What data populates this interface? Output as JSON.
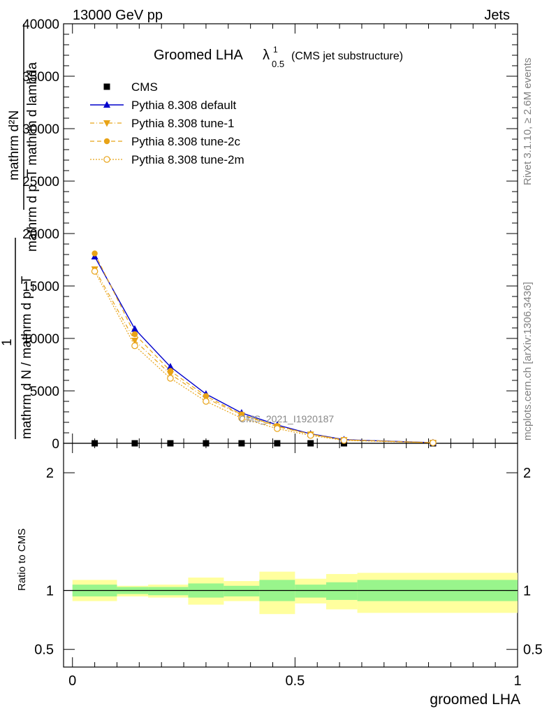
{
  "header": {
    "energy": "13000 GeV pp",
    "process": "Jets"
  },
  "side_labels": {
    "rivet": "Rivet 3.1.10, ≥ 2.6M events",
    "mcplots": "mcplots.cern.ch [arXiv:1306.3436]"
  },
  "title": {
    "main": "Groomed LHA",
    "lambda": "λ",
    "sup": "1",
    "sub": "0.5",
    "suffix": "(CMS jet substructure)"
  },
  "analysis_label": "CMS_2021_I1920187",
  "colors": {
    "cms": "#000000",
    "default": "#0000cc",
    "tunes": "#e8a317",
    "band_inner": "#99f58c",
    "band_outer": "#ffff9e"
  },
  "chart_data": [
    {
      "type": "line",
      "panel": "main",
      "ylabel_lines": [
        "mathrm d²N",
        "mathrm d p_T mathrm d lambda",
        "1",
        "mathrm d N / mathrm d p_T"
      ],
      "ylim": [
        0,
        40000
      ],
      "yticks": [
        0,
        5000,
        10000,
        15000,
        20000,
        25000,
        30000,
        35000,
        40000
      ],
      "ytick_labels": [
        "0",
        "5000",
        "10000",
        "15000",
        "20000",
        "25000",
        "30000",
        "35000",
        "40000"
      ],
      "xlim": [
        -0.02,
        1.0
      ],
      "legend_position": "top-left",
      "series": [
        {
          "name": "CMS",
          "marker": "square",
          "x": [
            0.05,
            0.14,
            0.22,
            0.3,
            0.38,
            0.46,
            0.535,
            0.61,
            0.81
          ],
          "y": [
            0,
            0,
            0,
            0,
            0,
            0,
            0,
            0,
            0
          ]
        },
        {
          "name": "Pythia 8.308 default",
          "marker": "triangle-up",
          "line": "solid",
          "x": [
            0.05,
            0.14,
            0.22,
            0.3,
            0.38,
            0.46,
            0.535,
            0.61,
            0.81
          ],
          "y": [
            17800,
            10900,
            7300,
            4700,
            2900,
            1750,
            900,
            350,
            60
          ]
        },
        {
          "name": "Pythia 8.308 tune-1",
          "marker": "triangle-down",
          "line": "dashdot",
          "x": [
            0.05,
            0.14,
            0.22,
            0.3,
            0.38,
            0.46,
            0.535,
            0.61,
            0.81
          ],
          "y": [
            16600,
            9800,
            6600,
            4300,
            2700,
            1600,
            850,
            320,
            55
          ]
        },
        {
          "name": "Pythia 8.308 tune-2c",
          "marker": "circle",
          "line": "dashed",
          "x": [
            0.05,
            0.14,
            0.22,
            0.3,
            0.38,
            0.46,
            0.535,
            0.61,
            0.81
          ],
          "y": [
            18100,
            10400,
            6900,
            4500,
            2750,
            1650,
            870,
            330,
            58
          ]
        },
        {
          "name": "Pythia 8.308 tune-2m",
          "marker": "open-circle",
          "line": "dotted",
          "x": [
            0.05,
            0.14,
            0.22,
            0.3,
            0.38,
            0.46,
            0.535,
            0.61,
            0.81
          ],
          "y": [
            16400,
            9300,
            6200,
            4000,
            2400,
            1400,
            750,
            280,
            50
          ]
        }
      ]
    },
    {
      "type": "area",
      "panel": "ratio",
      "ylabel": "Ratio to CMS",
      "xlabel": "groomed LHA",
      "ylim": [
        0.35,
        2.25
      ],
      "yticks": [
        0.5,
        1,
        2
      ],
      "ytick_labels": [
        "0.5",
        "1",
        "2"
      ],
      "xlim": [
        -0.02,
        1.0
      ],
      "xticks": [
        0,
        0.5,
        1
      ],
      "xtick_labels": [
        "0",
        "0.5",
        "1"
      ],
      "bins": [
        {
          "x0": 0.0,
          "x1": 0.1,
          "inner": [
            0.95,
            1.05
          ],
          "outer": [
            0.91,
            1.09
          ]
        },
        {
          "x0": 0.1,
          "x1": 0.17,
          "inner": [
            0.97,
            1.03
          ],
          "outer": [
            0.95,
            1.04
          ]
        },
        {
          "x0": 0.17,
          "x1": 0.26,
          "inner": [
            0.96,
            1.03
          ],
          "outer": [
            0.94,
            1.05
          ]
        },
        {
          "x0": 0.26,
          "x1": 0.34,
          "inner": [
            0.94,
            1.06
          ],
          "outer": [
            0.88,
            1.11
          ]
        },
        {
          "x0": 0.34,
          "x1": 0.42,
          "inner": [
            0.95,
            1.04
          ],
          "outer": [
            0.91,
            1.08
          ]
        },
        {
          "x0": 0.42,
          "x1": 0.5,
          "inner": [
            0.91,
            1.09
          ],
          "outer": [
            0.8,
            1.16
          ]
        },
        {
          "x0": 0.5,
          "x1": 0.57,
          "inner": [
            0.94,
            1.05
          ],
          "outer": [
            0.89,
            1.1
          ]
        },
        {
          "x0": 0.57,
          "x1": 0.64,
          "inner": [
            0.92,
            1.07
          ],
          "outer": [
            0.84,
            1.14
          ]
        },
        {
          "x0": 0.64,
          "x1": 1.0,
          "inner": [
            0.91,
            1.09
          ],
          "outer": [
            0.81,
            1.15
          ]
        }
      ]
    }
  ]
}
